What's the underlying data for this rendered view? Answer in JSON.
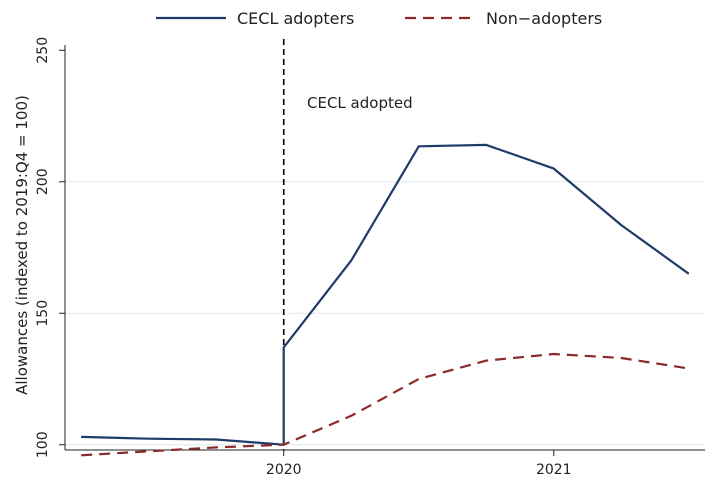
{
  "chart_data": {
    "type": "line",
    "xlabel": "",
    "ylabel": "Allowances (indexed to 2019:Q4 = 100)",
    "ylim": [
      98,
      252
    ],
    "xlim": [
      2019.25,
      2021.5
    ],
    "y_ticks": [
      100,
      150,
      200,
      250
    ],
    "x_ticks": [
      {
        "value": 2020,
        "label": "2020"
      },
      {
        "value": 2021,
        "label": "2021"
      }
    ],
    "grid": true,
    "legend_position": "top",
    "series": [
      {
        "name": "CECL adopters",
        "style": "solid",
        "color": "#1f3b68",
        "points": [
          {
            "x": 2019.25,
            "y": 103
          },
          {
            "x": 2019.5,
            "y": 102.3
          },
          {
            "x": 2019.75,
            "y": 102
          },
          {
            "x": 2020.0,
            "y": 100
          },
          {
            "x": 2020.0,
            "y": 137
          },
          {
            "x": 2020.25,
            "y": 170
          },
          {
            "x": 2020.5,
            "y": 213.5
          },
          {
            "x": 2020.75,
            "y": 214
          },
          {
            "x": 2021.0,
            "y": 205
          },
          {
            "x": 2021.25,
            "y": 183.5
          },
          {
            "x": 2021.5,
            "y": 165
          }
        ]
      },
      {
        "name": "Non−adopters",
        "style": "dashed",
        "color": "#8b2a2a",
        "points": [
          {
            "x": 2019.25,
            "y": 96
          },
          {
            "x": 2019.5,
            "y": 97.5
          },
          {
            "x": 2019.75,
            "y": 99
          },
          {
            "x": 2020.0,
            "y": 100
          },
          {
            "x": 2020.25,
            "y": 111
          },
          {
            "x": 2020.5,
            "y": 125
          },
          {
            "x": 2020.75,
            "y": 132
          },
          {
            "x": 2021.0,
            "y": 134.5
          },
          {
            "x": 2021.25,
            "y": 133
          },
          {
            "x": 2021.5,
            "y": 129
          }
        ]
      }
    ],
    "vertical_line": {
      "x": 2020.0,
      "style": "dashed",
      "color": "#000000"
    },
    "annotation": "CECL adopted"
  }
}
